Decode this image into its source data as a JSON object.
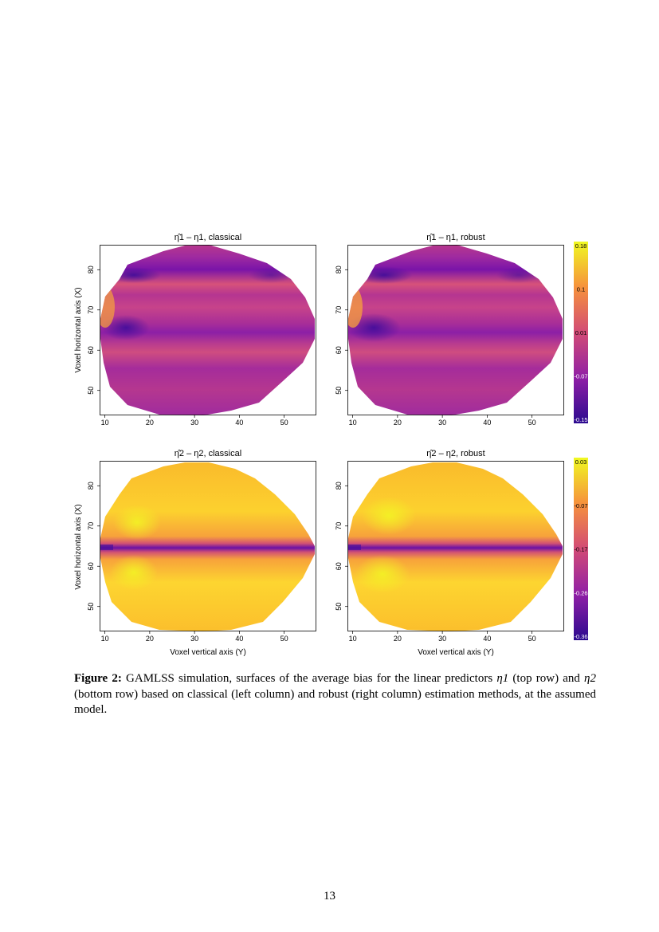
{
  "figure": {
    "panels": [
      {
        "title": "η̂1 – η1, classical",
        "scale": "eta1",
        "method": "classical"
      },
      {
        "title": "η̂1 – η1, robust",
        "scale": "eta1",
        "method": "robust"
      },
      {
        "title": "η̂2 – η2, classical",
        "scale": "eta2",
        "method": "classical"
      },
      {
        "title": "η̂2 – η2, robust",
        "scale": "eta2",
        "method": "robust"
      }
    ],
    "x_label": "Voxel vertical axis (Y)",
    "y_label": "Voxel horizontal axis (X)",
    "x_ticks": [
      "10",
      "20",
      "30",
      "40",
      "50"
    ],
    "y_ticks": [
      "50",
      "60",
      "70",
      "80"
    ],
    "colorbar_top": [
      "0.18",
      "0.1",
      "0.01",
      "-0.07",
      "-0.15"
    ],
    "colorbar_bottom": [
      "0.03",
      "-0.07",
      "-0.17",
      "-0.26",
      "-0.36"
    ],
    "colors": {
      "low": "#2b0a8f",
      "mid1": "#8f1fa6",
      "mid2": "#d24b76",
      "mid3": "#f6923c",
      "high": "#f0f921"
    }
  },
  "chart_data": {
    "type": "heatmap",
    "title": "GAMLSS simulation, surfaces of the average bias",
    "xlabel": "Voxel vertical axis (Y)",
    "ylabel": "Voxel horizontal axis (X)",
    "xlim": [
      9,
      57
    ],
    "ylim": [
      44,
      86
    ],
    "panels": [
      {
        "name": "η̂1 – η1, classical",
        "range": [
          -0.15,
          0.18
        ]
      },
      {
        "name": "η̂1 – η1, robust",
        "range": [
          -0.15,
          0.18
        ]
      },
      {
        "name": "η̂2 – η2, classical",
        "range": [
          -0.36,
          0.03
        ]
      },
      {
        "name": "η̂2 – η2, robust",
        "range": [
          -0.36,
          0.03
        ]
      }
    ],
    "legend": [
      {
        "ticks": [
          0.18,
          0.1,
          0.01,
          -0.07,
          -0.15
        ]
      },
      {
        "ticks": [
          0.03,
          -0.07,
          -0.17,
          -0.26,
          -0.36
        ]
      }
    ]
  },
  "caption": {
    "label": "Figure 2:",
    "text_a": " GAMLSS simulation, surfaces of the average bias for the linear predictors ",
    "eta1": "η1",
    "text_b": " (top row) and ",
    "eta2": "η2",
    "text_c": " (bottom row) based on classical (left column) and robust (right column) estimation methods, at the assumed model."
  },
  "page_number": "13"
}
